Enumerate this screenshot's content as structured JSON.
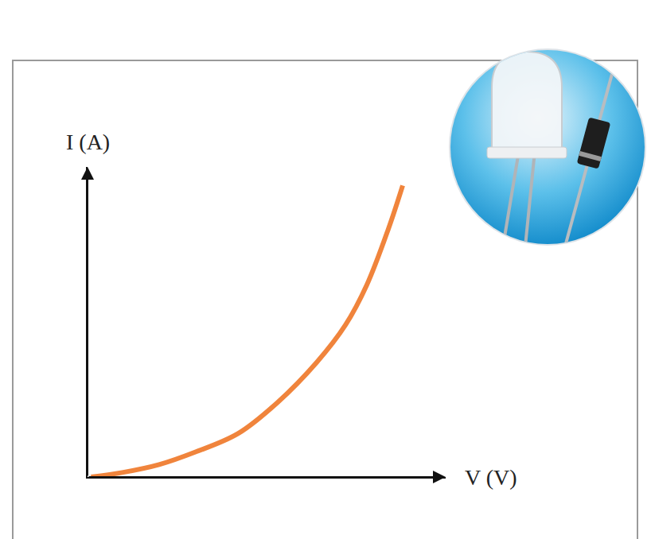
{
  "chart_data": {
    "type": "line",
    "x_label": "V (V)",
    "y_label": "I (A)",
    "x": [
      0.1,
      1.0,
      2.0,
      3.0,
      4.2,
      5.3,
      6.4,
      7.2,
      7.8,
      8.4,
      8.8
    ],
    "values": [
      0.0,
      0.15,
      0.4,
      0.8,
      1.4,
      2.4,
      3.7,
      4.9,
      6.2,
      8.0,
      9.4
    ],
    "color": "#f0843c",
    "xlim": [
      0,
      10
    ],
    "ylim": [
      0,
      10
    ],
    "xticks": [],
    "yticks": [],
    "tick_labels": false,
    "grid": false
  }
}
